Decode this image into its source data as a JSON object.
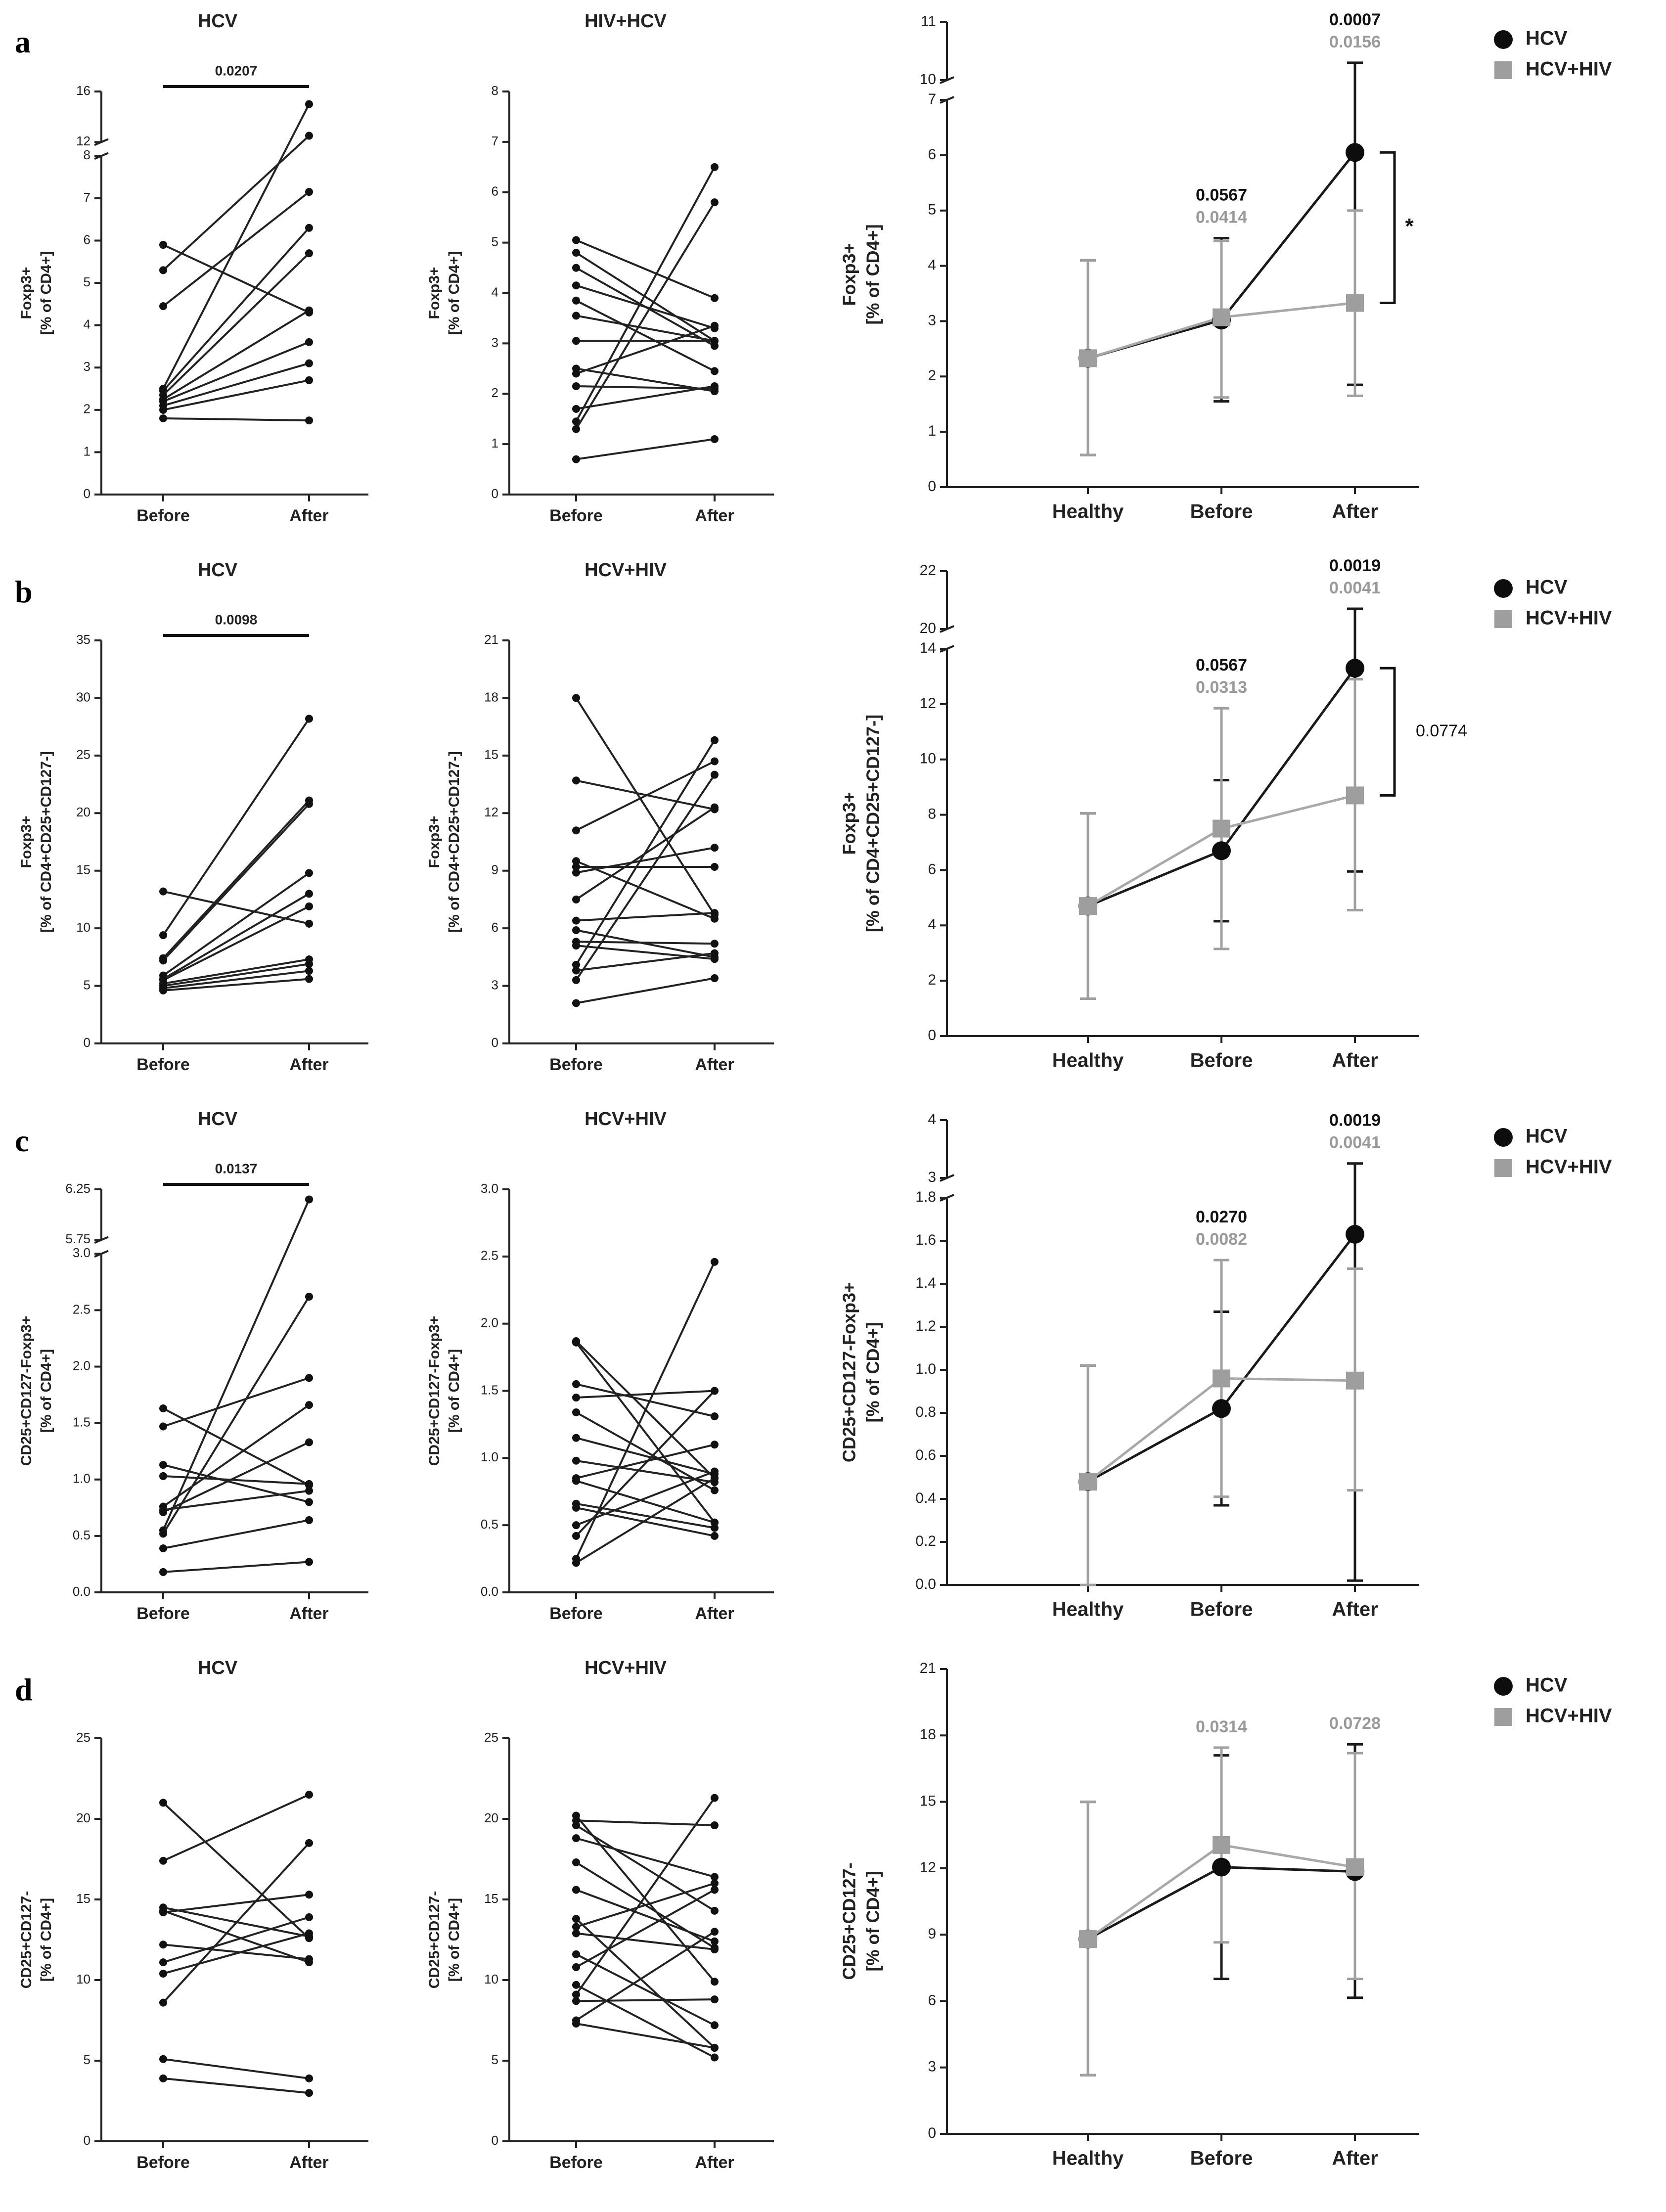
{
  "panels": [
    {
      "letter": "a"
    },
    {
      "letter": "b"
    },
    {
      "letter": "c"
    },
    {
      "letter": "d"
    }
  ],
  "chart_data": [
    {
      "type": "line",
      "panel": "a",
      "title": "HCV",
      "ylabel_lines": [
        "Foxp3+",
        "[% of CD4+]"
      ],
      "categories": [
        "Before",
        "After"
      ],
      "y_ticks": [
        "0",
        "1",
        "2",
        "3",
        "4",
        "5",
        "6",
        "7",
        "8",
        "12",
        "16"
      ],
      "y_break": {
        "lower_range": [
          0,
          8
        ],
        "upper_range": [
          12,
          16
        ]
      },
      "significance": {
        "label": "0.0207",
        "between": [
          "Before",
          "After"
        ]
      },
      "pairs": [
        [
          5.9,
          4.3
        ],
        [
          5.3,
          12.5
        ],
        [
          4.45,
          7.15
        ],
        [
          2.5,
          15.0
        ],
        [
          2.45,
          6.3
        ],
        [
          2.35,
          5.7
        ],
        [
          2.25,
          4.35
        ],
        [
          2.2,
          3.6
        ],
        [
          2.1,
          3.1
        ],
        [
          2.0,
          2.7
        ],
        [
          1.8,
          1.75
        ]
      ]
    },
    {
      "type": "line",
      "panel": "a",
      "title": "HIV+HCV",
      "ylabel_lines": [
        "Foxp3+",
        "[% of CD4+]"
      ],
      "categories": [
        "Before",
        "After"
      ],
      "y_ticks": [
        "0",
        "1",
        "2",
        "3",
        "4",
        "5",
        "6",
        "7",
        "8"
      ],
      "ylim": [
        0,
        8
      ],
      "pairs": [
        [
          5.05,
          3.9
        ],
        [
          4.8,
          3.05
        ],
        [
          4.5,
          2.95
        ],
        [
          4.15,
          3.3
        ],
        [
          3.85,
          2.45
        ],
        [
          3.55,
          3.05
        ],
        [
          3.05,
          3.05
        ],
        [
          2.5,
          2.05
        ],
        [
          2.4,
          3.35
        ],
        [
          2.15,
          2.1
        ],
        [
          1.7,
          2.15
        ],
        [
          1.45,
          6.5
        ],
        [
          1.3,
          5.8
        ],
        [
          0.7,
          1.1
        ]
      ]
    },
    {
      "type": "line",
      "panel": "a",
      "title": "",
      "ylabel_lines": [
        "Foxp3+",
        "[% of CD4+]"
      ],
      "categories": [
        "Healthy",
        "Before",
        "After"
      ],
      "y_ticks": [
        "0",
        "1",
        "2",
        "3",
        "4",
        "5",
        "6",
        "7",
        "10",
        "11"
      ],
      "y_break": {
        "lower_range": [
          0,
          7
        ],
        "upper_range": [
          10,
          11
        ]
      },
      "series": [
        {
          "name": "HCV",
          "color": "#000000",
          "marker": "circle",
          "values": [
            2.33,
            3.02,
            6.05
          ],
          "err_low": [
            0.58,
            1.55,
            1.85
          ],
          "err_high": [
            4.1,
            4.5,
            10.3
          ]
        },
        {
          "name": "HCV+HIV",
          "color": "#9e9e9e",
          "marker": "square",
          "values": [
            2.33,
            3.07,
            3.33
          ],
          "err_low": [
            0.58,
            1.62,
            1.65
          ],
          "err_high": [
            4.1,
            4.45,
            5.0
          ]
        }
      ],
      "p_values": [
        {
          "category": "Before",
          "hcv": "0.0567",
          "hcv_hiv": "0.0414"
        },
        {
          "category": "After",
          "hcv": "0.0007",
          "hcv_hiv": "0.0156"
        }
      ],
      "bracket_label": "*",
      "legend": "top-right"
    },
    {
      "type": "line",
      "panel": "b",
      "title": "HCV",
      "ylabel_lines": [
        "Foxp3+",
        "[% of CD4+CD25+CD127-]"
      ],
      "categories": [
        "Before",
        "After"
      ],
      "y_ticks": [
        "0",
        "5",
        "10",
        "15",
        "20",
        "25",
        "30",
        "35"
      ],
      "ylim": [
        0,
        35
      ],
      "significance": {
        "label": "0.0098",
        "between": [
          "Before",
          "After"
        ]
      },
      "pairs": [
        [
          13.2,
          10.4
        ],
        [
          9.4,
          28.2
        ],
        [
          7.4,
          21.1
        ],
        [
          7.2,
          20.8
        ],
        [
          5.9,
          14.8
        ],
        [
          5.6,
          13.0
        ],
        [
          5.5,
          11.9
        ],
        [
          5.2,
          7.3
        ],
        [
          5.0,
          6.9
        ],
        [
          4.8,
          6.3
        ],
        [
          4.6,
          5.6
        ]
      ]
    },
    {
      "type": "line",
      "panel": "b",
      "title": "HCV+HIV",
      "ylabel_lines": [
        "Foxp3+",
        "[% of CD4+CD25+CD127-]"
      ],
      "categories": [
        "Before",
        "After"
      ],
      "y_ticks": [
        "0",
        "3",
        "6",
        "9",
        "12",
        "15",
        "18",
        "21"
      ],
      "ylim": [
        0,
        21
      ],
      "pairs": [
        [
          18.0,
          6.7
        ],
        [
          13.7,
          12.2
        ],
        [
          11.1,
          14.7
        ],
        [
          9.5,
          6.5
        ],
        [
          9.2,
          9.2
        ],
        [
          8.9,
          10.2
        ],
        [
          7.5,
          12.3
        ],
        [
          6.4,
          6.8
        ],
        [
          5.9,
          4.5
        ],
        [
          5.3,
          5.2
        ],
        [
          5.1,
          4.4
        ],
        [
          4.1,
          15.8
        ],
        [
          3.8,
          4.7
        ],
        [
          3.3,
          14.0
        ],
        [
          2.1,
          3.4
        ]
      ]
    },
    {
      "type": "line",
      "panel": "b",
      "title": "",
      "ylabel_lines": [
        "Foxp3+",
        "[% of CD4+CD25+CD127-]"
      ],
      "categories": [
        "Healthy",
        "Before",
        "After"
      ],
      "y_ticks": [
        "0",
        "2",
        "4",
        "6",
        "8",
        "10",
        "12",
        "14",
        "20",
        "22"
      ],
      "y_break": {
        "lower_range": [
          0,
          14
        ],
        "upper_range": [
          20,
          22
        ]
      },
      "series": [
        {
          "name": "HCV",
          "color": "#000000",
          "marker": "circle",
          "values": [
            4.7,
            6.7,
            13.3
          ],
          "err_low": [
            1.35,
            4.15,
            5.95
          ],
          "err_high": [
            8.05,
            9.25,
            20.7
          ]
        },
        {
          "name": "HCV+HIV",
          "color": "#9e9e9e",
          "marker": "square",
          "values": [
            4.7,
            7.5,
            8.7
          ],
          "err_low": [
            1.35,
            3.15,
            4.55
          ],
          "err_high": [
            8.05,
            11.85,
            12.9
          ]
        }
      ],
      "p_values": [
        {
          "category": "Before",
          "hcv": "0.0567",
          "hcv_hiv": "0.0313"
        },
        {
          "category": "After",
          "hcv": "0.0019",
          "hcv_hiv": "0.0041"
        }
      ],
      "bracket_label": "0.0774",
      "legend": "top-right"
    },
    {
      "type": "line",
      "panel": "c",
      "title": "HCV",
      "ylabel_lines": [
        "CD25+CD127-Foxp3+",
        "[% of CD4+]"
      ],
      "categories": [
        "Before",
        "After"
      ],
      "y_ticks": [
        "0.0",
        "0.5",
        "1.0",
        "1.5",
        "2.0",
        "2.5",
        "3.0",
        "5.75",
        "6.25"
      ],
      "y_break": {
        "lower_range": [
          0,
          3.0
        ],
        "upper_range": [
          5.75,
          6.25
        ]
      },
      "significance": {
        "label": "0.0137",
        "between": [
          "Before",
          "After"
        ]
      },
      "pairs": [
        [
          1.63,
          0.95
        ],
        [
          1.47,
          1.9
        ],
        [
          1.13,
          0.8
        ],
        [
          1.03,
          0.96
        ],
        [
          0.76,
          1.66
        ],
        [
          0.73,
          0.9
        ],
        [
          0.71,
          1.33
        ],
        [
          0.55,
          6.15
        ],
        [
          0.52,
          2.62
        ],
        [
          0.39,
          0.64
        ],
        [
          0.18,
          0.27
        ]
      ]
    },
    {
      "type": "line",
      "panel": "c",
      "title": "HCV+HIV",
      "ylabel_lines": [
        "CD25+CD127-Foxp3+",
        "[% of CD4+]"
      ],
      "categories": [
        "Before",
        "After"
      ],
      "y_ticks": [
        "0.0",
        "0.5",
        "1.0",
        "1.5",
        "2.0",
        "2.5",
        "3.0"
      ],
      "ylim": [
        0,
        3.0
      ],
      "pairs": [
        [
          1.87,
          0.85
        ],
        [
          1.86,
          0.52
        ],
        [
          1.55,
          1.31
        ],
        [
          1.45,
          1.5
        ],
        [
          1.34,
          0.76
        ],
        [
          1.15,
          0.88
        ],
        [
          0.98,
          0.82
        ],
        [
          0.85,
          1.1
        ],
        [
          0.83,
          0.52
        ],
        [
          0.66,
          0.48
        ],
        [
          0.63,
          0.42
        ],
        [
          0.5,
          0.9
        ],
        [
          0.42,
          1.5
        ],
        [
          0.25,
          2.46
        ],
        [
          0.22,
          0.85
        ]
      ]
    },
    {
      "type": "line",
      "panel": "c",
      "title": "",
      "ylabel_lines": [
        "CD25+CD127-Foxp3+",
        "[% of CD4+]"
      ],
      "categories": [
        "Healthy",
        "Before",
        "After"
      ],
      "y_ticks": [
        "0.0",
        "0.2",
        "0.4",
        "0.6",
        "0.8",
        "1.0",
        "1.2",
        "1.4",
        "1.6",
        "1.8",
        "3",
        "4"
      ],
      "y_break": {
        "lower_range": [
          0,
          1.8
        ],
        "upper_range": [
          3,
          4
        ]
      },
      "series": [
        {
          "name": "HCV",
          "color": "#000000",
          "marker": "circle",
          "values": [
            0.48,
            0.82,
            1.63
          ],
          "err_low": [
            0.0,
            0.37,
            0.02
          ],
          "err_high": [
            1.02,
            1.27,
            3.25
          ]
        },
        {
          "name": "HCV+HIV",
          "color": "#9e9e9e",
          "marker": "square",
          "values": [
            0.48,
            0.96,
            0.95
          ],
          "err_low": [
            0.0,
            0.41,
            0.44
          ],
          "err_high": [
            1.02,
            1.51,
            1.47
          ]
        }
      ],
      "p_values": [
        {
          "category": "Before",
          "hcv": "0.0270",
          "hcv_hiv": "0.0082"
        },
        {
          "category": "After",
          "hcv": "0.0019",
          "hcv_hiv": "0.0041"
        }
      ],
      "legend": "top-right"
    },
    {
      "type": "line",
      "panel": "d",
      "title": "HCV",
      "ylabel_lines": [
        "CD25+CD127-",
        "[% of CD4+]"
      ],
      "categories": [
        "Before",
        "After"
      ],
      "y_ticks": [
        "0",
        "5",
        "10",
        "15",
        "20",
        "25"
      ],
      "ylim": [
        0,
        25
      ],
      "pairs": [
        [
          21.0,
          12.6
        ],
        [
          17.4,
          21.5
        ],
        [
          14.5,
          12.7
        ],
        [
          14.3,
          11.1
        ],
        [
          14.2,
          15.3
        ],
        [
          12.2,
          11.3
        ],
        [
          11.1,
          13.9
        ],
        [
          10.4,
          12.9
        ],
        [
          8.6,
          18.5
        ],
        [
          5.1,
          3.9
        ],
        [
          3.9,
          3.0
        ]
      ]
    },
    {
      "type": "line",
      "panel": "d",
      "title": "HCV+HIV",
      "ylabel_lines": [
        "CD25+CD127-",
        "[% of CD4+]"
      ],
      "categories": [
        "Before",
        "After"
      ],
      "y_ticks": [
        "0",
        "5",
        "10",
        "15",
        "20",
        "25"
      ],
      "ylim": [
        0,
        25
      ],
      "pairs": [
        [
          20.2,
          9.9
        ],
        [
          19.9,
          19.6
        ],
        [
          19.6,
          14.3
        ],
        [
          18.8,
          16.4
        ],
        [
          17.3,
          12.0
        ],
        [
          15.6,
          12.4
        ],
        [
          13.8,
          5.8
        ],
        [
          13.3,
          16.0
        ],
        [
          12.9,
          11.9
        ],
        [
          11.6,
          7.2
        ],
        [
          10.8,
          15.6
        ],
        [
          9.7,
          5.2
        ],
        [
          9.1,
          21.3
        ],
        [
          8.7,
          8.8
        ],
        [
          7.5,
          13.0
        ],
        [
          7.3,
          5.8
        ]
      ]
    },
    {
      "type": "line",
      "panel": "d",
      "title": "",
      "ylabel_lines": [
        "CD25+CD127-",
        "[% of CD4+]"
      ],
      "categories": [
        "Healthy",
        "Before",
        "After"
      ],
      "y_ticks": [
        "0",
        "3",
        "6",
        "9",
        "12",
        "15",
        "18",
        "21"
      ],
      "ylim": [
        0,
        21
      ],
      "series": [
        {
          "name": "HCV",
          "color": "#000000",
          "marker": "circle",
          "values": [
            8.8,
            12.05,
            11.85
          ],
          "err_low": [
            2.65,
            7.0,
            6.15
          ],
          "err_high": [
            15.0,
            17.1,
            17.6
          ]
        },
        {
          "name": "HCV+HIV",
          "color": "#9e9e9e",
          "marker": "square",
          "values": [
            8.8,
            13.05,
            12.05
          ],
          "err_low": [
            2.65,
            8.65,
            7.0
          ],
          "err_high": [
            15.0,
            17.45,
            17.2
          ]
        }
      ],
      "p_values": [
        {
          "category": "Before",
          "hcv": "",
          "hcv_hiv": "0.0314"
        },
        {
          "category": "After",
          "hcv": "",
          "hcv_hiv": "0.0728"
        }
      ],
      "legend": "top-right"
    }
  ]
}
